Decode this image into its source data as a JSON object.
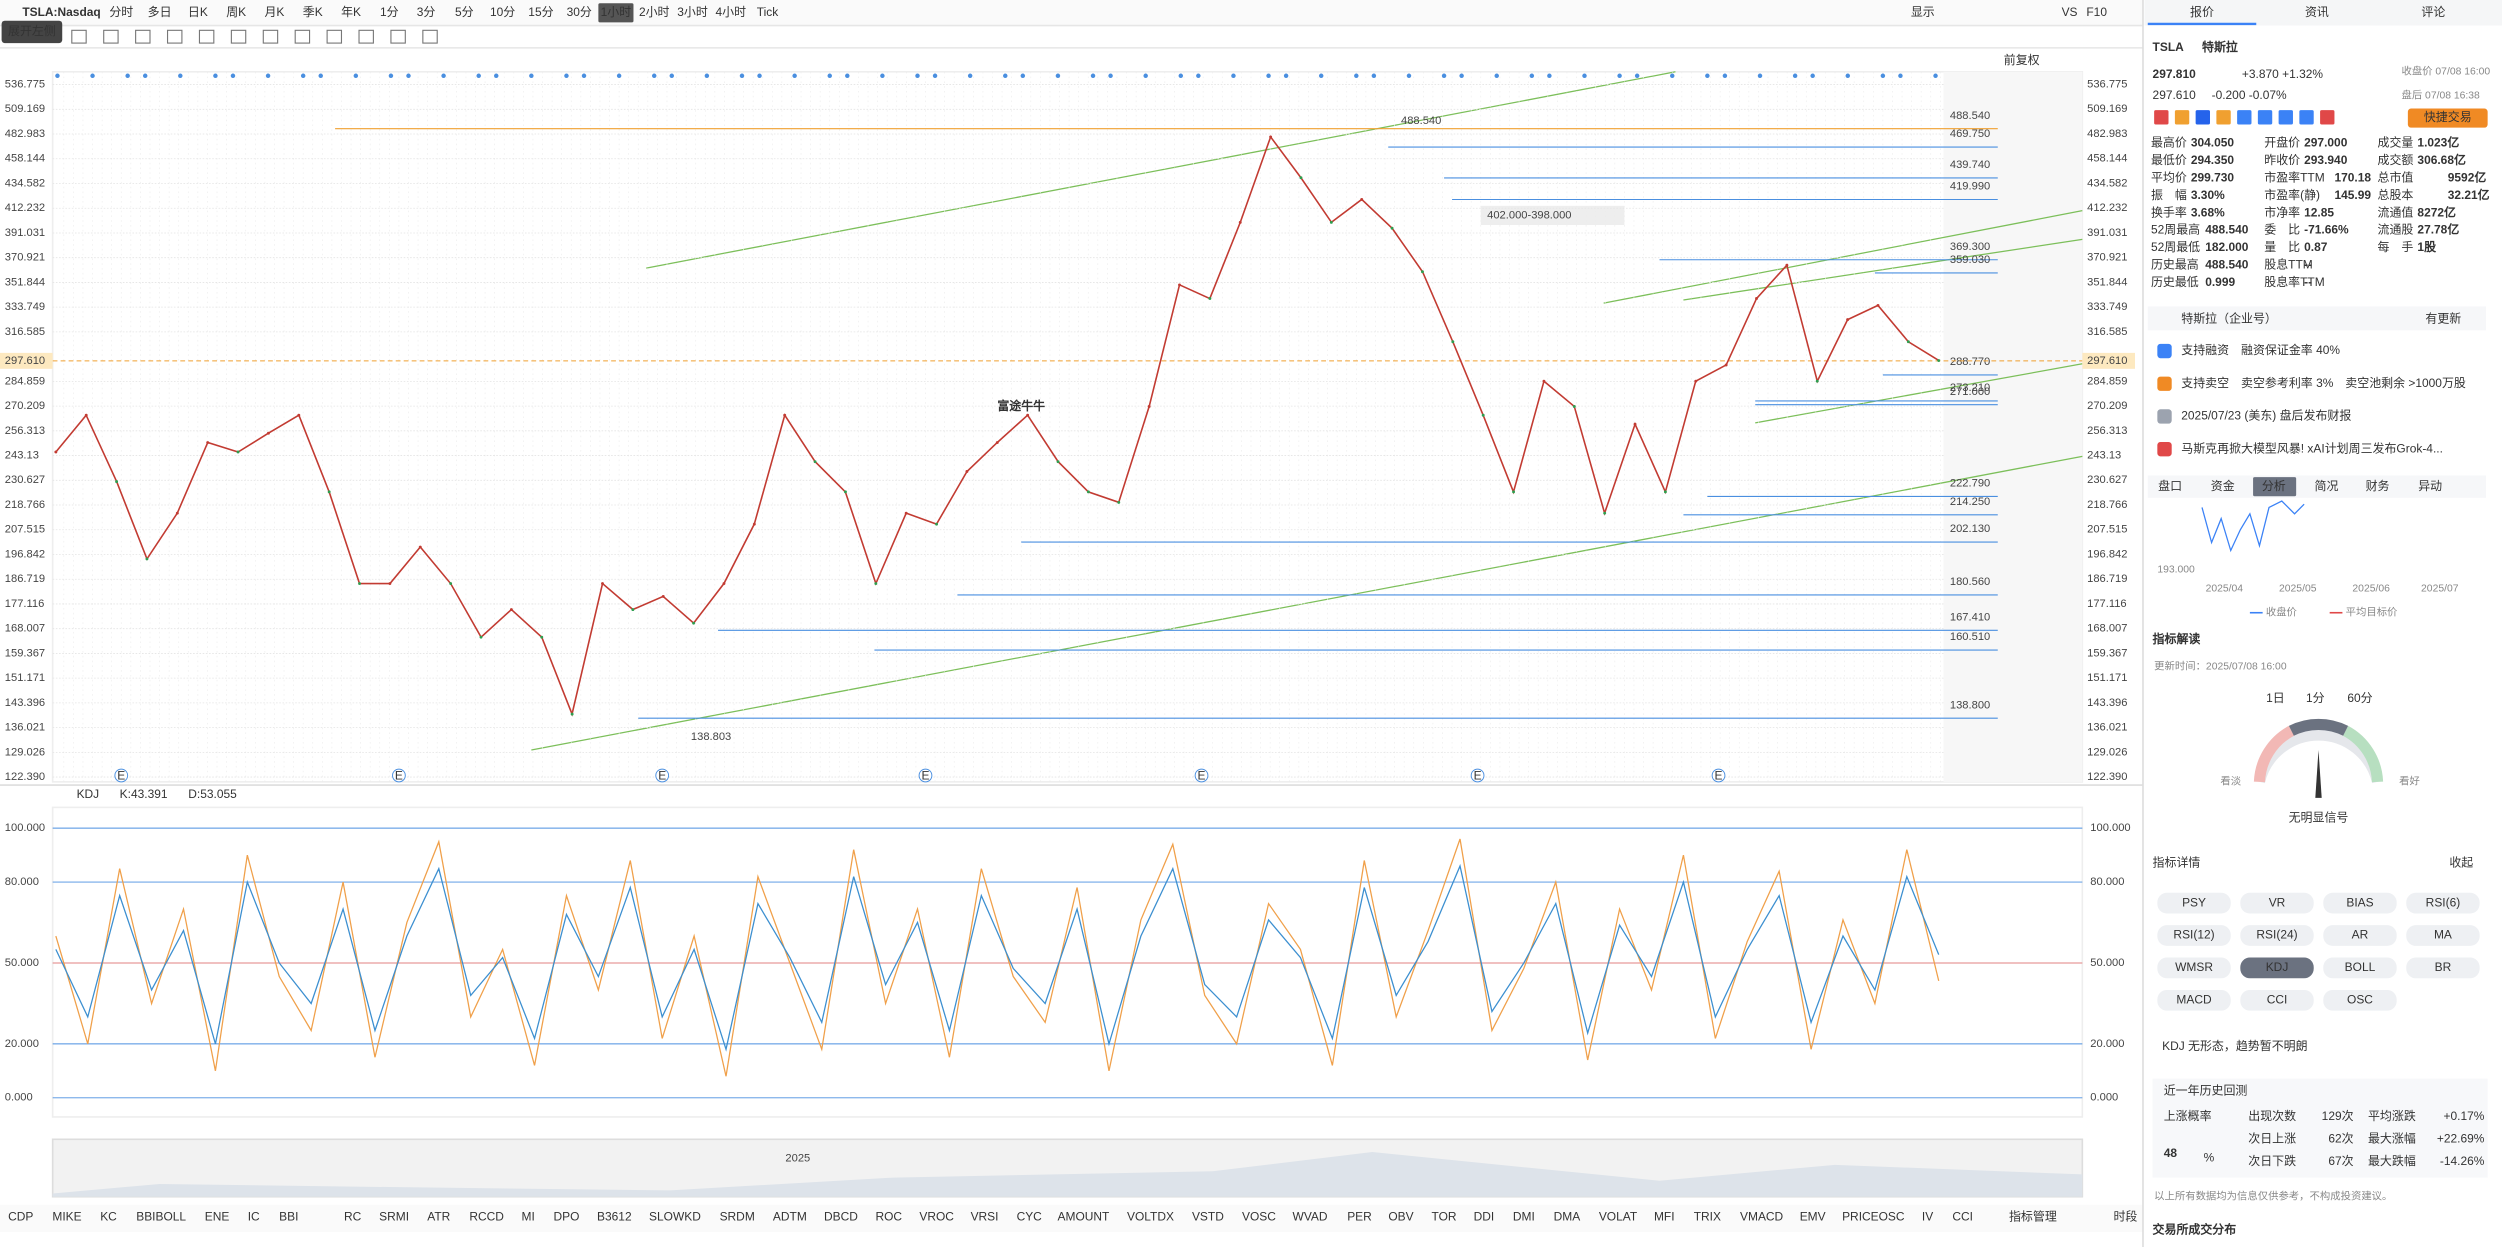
{
  "toolbar": {
    "symbol": "TSLA:Nasdaq",
    "periods": [
      "分时",
      "多日",
      "日K",
      "周K",
      "月K",
      "季K",
      "年K",
      "1分",
      "3分",
      "5分",
      "10分",
      "15分",
      "30分",
      "1小时",
      "2小时",
      "3小时",
      "4小时",
      "Tick"
    ],
    "right_items": [
      "显示",
      "VS",
      "F10"
    ],
    "tooltip": "展开左侧",
    "adjust": "前复权"
  },
  "main_chart": {
    "type": "line",
    "log_scale": true,
    "color": "#c23b32",
    "values": [
      245,
      265,
      230,
      195,
      215,
      250,
      245,
      255,
      265,
      225,
      185,
      185,
      200,
      185,
      165,
      175,
      165,
      140,
      185,
      175,
      180,
      170,
      185,
      210,
      265,
      240,
      225,
      185,
      215,
      210,
      235,
      250,
      265,
      240,
      225,
      220,
      270,
      350,
      340,
      400,
      480,
      440,
      400,
      420,
      395,
      360,
      310,
      265,
      225,
      285,
      270,
      215,
      260,
      225,
      285,
      295,
      340,
      365,
      285,
      325,
      335,
      310,
      297.81
    ],
    "ylim": [
      122.39,
      536.775
    ],
    "yticks": [
      {
        "value": 122.39,
        "label": "122.390"
      },
      129.026,
      136.021,
      143.396,
      151.171,
      159.367,
      168.007,
      177.116,
      186.719,
      196.842,
      207.515,
      218.766,
      230.627,
      243.13,
      256.313,
      270.209,
      284.859,
      316.585,
      333.749,
      351.844,
      370.921,
      391.031,
      412.232,
      434.582,
      458.144,
      482.983,
      509.169,
      536.775
    ],
    "current_price": {
      "value": 297.61,
      "label": "297.610"
    },
    "levels": [
      {
        "value": 488.54,
        "label": "488.540",
        "color": "#f0a030"
      },
      {
        "value": 469.75,
        "label": "469.750",
        "color": "#4a8fe0"
      },
      {
        "value": 439.74,
        "label": "439.740",
        "color": "#4a8fe0"
      },
      {
        "value": 419.99,
        "label": "419.990",
        "color": "#4a8fe0"
      },
      {
        "value": 369.3,
        "label": "369.300",
        "color": "#4a8fe0"
      },
      {
        "value": 359.03,
        "label": "359.030",
        "color": "#4a8fe0"
      },
      {
        "value": 288.77,
        "label": "288.770",
        "color": "#e04848"
      },
      {
        "value": 273.21,
        "label": "273.210",
        "color": "#e04848"
      },
      {
        "value": 271,
        "label": "271.000",
        "color": "#4a8fe0"
      },
      {
        "value": 222.79,
        "label": "222.790",
        "color": "#4a8fe0"
      },
      {
        "value": 214.25,
        "label": "214.250",
        "color": "#e04848"
      },
      {
        "value": 202.13,
        "label": "202.130",
        "color": "#4a8fe0"
      },
      {
        "value": 180.56,
        "label": "180.560",
        "color": "#e04848"
      },
      {
        "value": 167.41,
        "label": "167.410",
        "color": "#e04848"
      },
      {
        "value": 160.51,
        "label": "160.510",
        "color": "#e04848"
      },
      {
        "value": 138.8,
        "label": "138.800",
        "color": "#e04848"
      }
    ],
    "annotations": [
      "488.540",
      "138.803",
      "402.000-398.000"
    ],
    "event_markers": [
      "E",
      "E",
      "E",
      "E",
      "E",
      "E",
      "E"
    ],
    "watermark": "富途牛牛"
  },
  "kdj_panel": {
    "type": "line",
    "indicator": "KDJ",
    "k_label": "K:43.391",
    "d_label": "D:53.055",
    "ylim": [
      0,
      100
    ],
    "yticks": [
      {
        "value": 0,
        "label": "0.000"
      },
      {
        "value": 20,
        "label": "20.000"
      },
      {
        "value": 50,
        "label": "50.000"
      },
      {
        "value": 80,
        "label": "80.000"
      },
      {
        "value": 100,
        "label": "100.000"
      }
    ],
    "series": [
      {
        "color": "#f0a04a",
        "values": [
          60,
          20,
          85,
          35,
          70,
          10,
          90,
          45,
          25,
          80,
          15,
          65,
          95,
          30,
          55,
          12,
          75,
          40,
          88,
          22,
          60,
          8,
          82,
          50,
          18,
          92,
          35,
          70,
          15,
          85,
          45,
          28,
          78,
          10,
          66,
          94,
          38,
          20,
          72,
          55,
          12,
          88,
          30,
          62,
          96,
          25,
          48,
          80,
          14,
          70,
          40,
          90,
          22,
          58,
          84,
          18,
          66,
          35,
          92,
          43.391
        ]
      },
      {
        "color": "#3c8fd0",
        "values": [
          55,
          30,
          75,
          40,
          62,
          20,
          80,
          50,
          35,
          70,
          25,
          60,
          85,
          38,
          52,
          22,
          68,
          45,
          78,
          30,
          55,
          18,
          72,
          52,
          28,
          82,
          42,
          65,
          25,
          75,
          48,
          35,
          70,
          20,
          60,
          85,
          42,
          30,
          66,
          52,
          22,
          78,
          38,
          58,
          86,
          32,
          50,
          72,
          24,
          64,
          45,
          80,
          30,
          55,
          75,
          28,
          60,
          40,
          82,
          53.055
        ]
      }
    ]
  },
  "overview": {
    "year": "2025"
  },
  "indicator_tabs": [
    "CDP",
    "MIKE",
    "KC",
    "BBIBOLL",
    "ENE",
    "IC",
    "BBI",
    "RC",
    "SRMI",
    "ATR",
    "RCCD",
    "MI",
    "DPO",
    "B3612",
    "SLOWKD",
    "SRDM",
    "ADTM",
    "DBCD",
    "ROC",
    "VROC",
    "VRSI",
    "CYC",
    "AMOUNT",
    "VOLTDX",
    "VSTD",
    "VOSC",
    "WVAD",
    "PER",
    "OBV",
    "TOR",
    "DDI",
    "DMI",
    "DMA",
    "VOLAT",
    "MFI",
    "TRIX",
    "VMACD",
    "EMV",
    "PRICEOSC",
    "IV",
    "CCI",
    "指标管理"
  ],
  "session_tab": "时段",
  "panel": {
    "tabs": [
      "报价",
      "资讯",
      "评论"
    ],
    "ticker": "TSLA",
    "name": "特斯拉",
    "price": "297.810",
    "change": "+3.870 +1.32%",
    "close_time": "收盘价 07/08 16:00",
    "after_price": "297.610",
    "after_change": "-0.200 -0.07%",
    "after_time": "盘后 07/08 16:38",
    "quick_trade": "快捷交易",
    "stats": [
      [
        [
          "最高价",
          "304.050"
        ],
        [
          "开盘价",
          "297.000"
        ],
        [
          "成交量",
          "1.023亿"
        ]
      ],
      [
        [
          "最低价",
          "294.350"
        ],
        [
          "昨收价",
          "293.940"
        ],
        [
          "成交额",
          "306.68亿"
        ]
      ],
      [
        [
          "平均价",
          "299.730"
        ],
        [
          "市盈率TTM",
          "170.18"
        ],
        [
          "总市值",
          "9592亿"
        ]
      ],
      [
        [
          "振　幅",
          "3.30%"
        ],
        [
          "市盈率(静)",
          "145.99"
        ],
        [
          "总股本",
          "32.21亿"
        ]
      ],
      [
        [
          "换手率",
          "3.68%"
        ],
        [
          "市净率",
          "12.85"
        ],
        [
          "流通值",
          "8272亿"
        ]
      ],
      [
        [
          "52周最高",
          "488.540"
        ],
        [
          "委　比",
          "-71.66%"
        ],
        [
          "流通股",
          "27.78亿"
        ]
      ],
      [
        [
          "52周最低",
          "182.000"
        ],
        [
          "量　比",
          "0.87"
        ],
        [
          "每　手",
          "1股"
        ]
      ],
      [
        [
          "历史最高",
          "488.540"
        ],
        [
          "股息TTM",
          "--"
        ]
      ],
      [
        [
          "历史最低",
          "0.999"
        ],
        [
          "股息率TTM",
          "--"
        ]
      ]
    ],
    "company_account": "特斯拉（企业号）",
    "update_note": "有更新",
    "notices": [
      "支持融资　融资保证金率 40%",
      "支持卖空　卖空参考利率 3%　卖空池剩余 >1000万股",
      "2025/07/23 (美东) 盘后发布财报",
      "马斯克再掀大模型风暴! xAI计划周三发布Grok-4..."
    ],
    "subtabs": [
      "盘口",
      "资金",
      "分析",
      "简况",
      "财务",
      "异动"
    ],
    "mini_chart": {
      "y_label": "193.000",
      "x_labels": [
        "2025/04",
        "2025/05",
        "2025/06",
        "2025/07"
      ],
      "legend": [
        "收盘价",
        "平均目标价"
      ]
    },
    "interpret": {
      "title": "指标解读",
      "updated": "更新时间：2025/07/08 16:00",
      "periods": [
        "1日",
        "1分",
        "60分"
      ],
      "bear": "看淡",
      "bull": "看好",
      "signal": "无明显信号"
    },
    "detail_title": "指标详情",
    "collapse": "收起",
    "indicators": [
      "PSY",
      "VR",
      "BIAS",
      "RSI(6)",
      "RSI(12)",
      "RSI(24)",
      "AR",
      "MA",
      "WMSR",
      "KDJ",
      "BOLL",
      "BR",
      "MACD",
      "CCI",
      "OSC"
    ],
    "pattern": "KDJ 无形态，趋势暂不明朗",
    "backtest": {
      "title": "近一年历史回测",
      "prob_label": "上涨概率",
      "prob": "48",
      "prob_unit": "%",
      "rows": [
        [
          "出现次数",
          "129次",
          "平均涨跌",
          "+0.17%"
        ],
        [
          "次日上涨",
          "62次",
          "最大涨幅",
          "+22.69%"
        ],
        [
          "次日下跌",
          "67次",
          "最大跌幅",
          "-14.26%"
        ]
      ]
    },
    "disclaimer": "以上所有数据均为信息仅供参考，不构成投资建议。",
    "footer": "交易所成交分布"
  }
}
